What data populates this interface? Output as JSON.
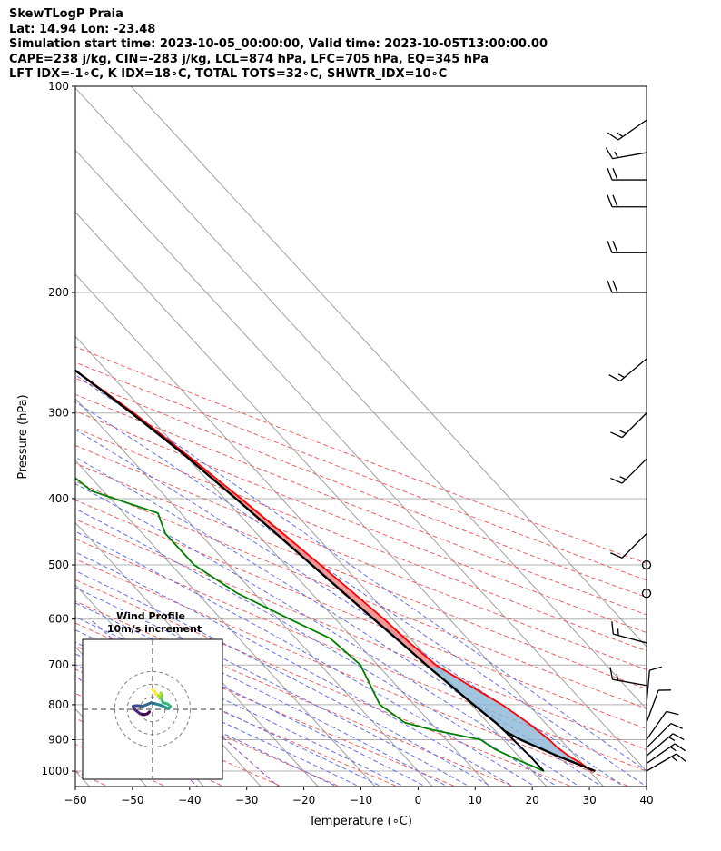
{
  "header": {
    "title": "SkewTLogP Praia",
    "location": "Lat: 14.94   Lon: -23.48",
    "times": "Simulation start time: 2023-10-05_00:00:00, Valid time: 2023-10-05T13:00:00.00",
    "params": "CAPE=238 j/kg, CIN=-283 j/kg, LCL=874 hPa, LFC=705 hPa, EQ=345 hPa",
    "indices": "LFT IDX=-1∘C, K IDX=18∘C, TOTAL TOTS=32∘C, SHWTR_IDX=10∘C"
  },
  "chart_data": {
    "type": "line",
    "subtype": "skew-T log-P diagram",
    "xlabel": "Temperature (∘C)",
    "ylabel": "Pressure (hPa)",
    "xlim": [
      -60,
      40
    ],
    "ylim_hpa": [
      1050,
      100
    ],
    "y_scale": "log",
    "x_ticks": [
      "−60",
      "−50",
      "−40",
      "−30",
      "−20",
      "−10",
      "0",
      "10",
      "20",
      "30",
      "40"
    ],
    "y_ticks": [
      "1000",
      "900",
      "800",
      "700",
      "600",
      "500",
      "400",
      "300",
      "200",
      "100"
    ],
    "grid": true,
    "colors": {
      "temperature": "#ff0000",
      "dewpoint": "#008000",
      "parcel": "#000000",
      "cape": "#8ab6d6",
      "cin": "#f08080",
      "dry_adiabat": "#f06060",
      "moist_adiabat": "#6070ee",
      "mixing_ratio": "#9040c0",
      "isotherm": "#a0a0a0"
    },
    "series": [
      {
        "key": "temperature",
        "points": [
          [
            1000,
            30.5
          ],
          [
            975,
            29.8
          ],
          [
            950,
            28.8
          ],
          [
            925,
            28.2
          ],
          [
            900,
            28.0
          ],
          [
            850,
            27.0
          ],
          [
            800,
            25.4
          ],
          [
            750,
            22.8
          ],
          [
            700,
            20.2
          ],
          [
            650,
            19.2
          ],
          [
            600,
            18.5
          ],
          [
            550,
            17.4
          ],
          [
            500,
            16.1
          ],
          [
            450,
            14.6
          ],
          [
            400,
            12.9
          ],
          [
            350,
            10.7
          ],
          [
            300,
            7.9
          ],
          [
            250,
            3.6
          ],
          [
            200,
            -2.6
          ],
          [
            175,
            -6.9
          ],
          [
            150,
            -11.2
          ],
          [
            137,
            -13.4
          ],
          [
            125,
            -12.3
          ],
          [
            112,
            -11.2
          ],
          [
            100,
            -9.3
          ]
        ]
      },
      {
        "key": "dewpoint",
        "points": [
          [
            1000,
            22.0
          ],
          [
            985,
            21.0
          ],
          [
            960,
            19.0
          ],
          [
            930,
            17.0
          ],
          [
            900,
            16.0
          ],
          [
            870,
            9.0
          ],
          [
            850,
            5.5
          ],
          [
            800,
            4.0
          ],
          [
            700,
            7.0
          ],
          [
            640,
            6.0
          ],
          [
            600,
            2.0
          ],
          [
            550,
            -3.0
          ],
          [
            500,
            -6.0
          ],
          [
            450,
            -6.0
          ],
          [
            420,
            -4.0
          ],
          [
            390,
            -12.0
          ],
          [
            350,
            -14.0
          ],
          [
            320,
            -14.0
          ],
          [
            300,
            -16.0
          ],
          [
            260,
            -22.0
          ],
          [
            230,
            -27.0
          ],
          [
            210,
            -34.0
          ],
          [
            200,
            -35.0
          ],
          [
            175,
            -40.0
          ],
          [
            150,
            -46.0
          ],
          [
            130,
            -51.0
          ],
          [
            120,
            -51.0
          ],
          [
            110,
            -48.0
          ],
          [
            100,
            -47.0
          ]
        ]
      },
      {
        "key": "parcel",
        "points": [
          [
            1000,
            31.0
          ],
          [
            950,
            26.8
          ],
          [
            900,
            23.0
          ],
          [
            874,
            21.6
          ],
          [
            850,
            21.4
          ],
          [
            800,
            20.4
          ],
          [
            750,
            19.5
          ],
          [
            705,
            18.6
          ],
          [
            650,
            17.7
          ],
          [
            600,
            16.7
          ],
          [
            550,
            15.7
          ],
          [
            500,
            14.6
          ],
          [
            450,
            13.4
          ],
          [
            400,
            12.0
          ],
          [
            345,
            10.0
          ],
          [
            300,
            7.5
          ],
          [
            250,
            3.7
          ],
          [
            200,
            -2.0
          ],
          [
            175,
            -6.0
          ],
          [
            150,
            -10.5
          ],
          [
            125,
            -16.0
          ],
          [
            112,
            -19.5
          ],
          [
            100,
            -23.0
          ]
        ]
      },
      {
        "key": "parcel_surface_branch",
        "points": [
          [
            1000,
            22.0
          ],
          [
            950,
            22.0
          ],
          [
            900,
            21.7
          ],
          [
            874,
            21.6
          ]
        ]
      }
    ],
    "wind_barbs": [
      {
        "p": 1000,
        "kind": "barb",
        "speed_kt": 15,
        "dir_deg": 60
      },
      {
        "p": 975,
        "kind": "barb",
        "speed_kt": 15,
        "dir_deg": 55
      },
      {
        "p": 950,
        "kind": "barb",
        "speed_kt": 15,
        "dir_deg": 50
      },
      {
        "p": 925,
        "kind": "barb",
        "speed_kt": 10,
        "dir_deg": 45
      },
      {
        "p": 900,
        "kind": "barb",
        "speed_kt": 10,
        "dir_deg": 35
      },
      {
        "p": 850,
        "kind": "barb",
        "speed_kt": 10,
        "dir_deg": 20
      },
      {
        "p": 800,
        "kind": "barb",
        "speed_kt": 10,
        "dir_deg": 5
      },
      {
        "p": 750,
        "kind": "barb",
        "speed_kt": 15,
        "dir_deg": 280
      },
      {
        "p": 650,
        "kind": "barb",
        "speed_kt": 15,
        "dir_deg": 285
      },
      {
        "p": 550,
        "kind": "calm"
      },
      {
        "p": 500,
        "kind": "calm"
      },
      {
        "p": 450,
        "kind": "barb",
        "speed_kt": 10,
        "dir_deg": 225
      },
      {
        "p": 350,
        "kind": "barb",
        "speed_kt": 15,
        "dir_deg": 225
      },
      {
        "p": 300,
        "kind": "barb",
        "speed_kt": 15,
        "dir_deg": 225
      },
      {
        "p": 250,
        "kind": "barb",
        "speed_kt": 15,
        "dir_deg": 230
      },
      {
        "p": 200,
        "kind": "barb",
        "speed_kt": 20,
        "dir_deg": 270
      },
      {
        "p": 175,
        "kind": "barb",
        "speed_kt": 20,
        "dir_deg": 270
      },
      {
        "p": 150,
        "kind": "barb",
        "speed_kt": 20,
        "dir_deg": 270
      },
      {
        "p": 137,
        "kind": "barb",
        "speed_kt": 20,
        "dir_deg": 270
      },
      {
        "p": 125,
        "kind": "barb",
        "speed_kt": 15,
        "dir_deg": 260
      },
      {
        "p": 112,
        "kind": "barb",
        "speed_kt": 15,
        "dir_deg": 235
      }
    ],
    "hodograph": {
      "title": "Wind Profile",
      "subtitle": "10m/s increment",
      "ring_step_ms": 10,
      "ring_count": 3,
      "range_ms": [
        -10,
        10
      ],
      "points": [
        [
          -1.0,
          -0.8
        ],
        [
          -1.6,
          -1.4
        ],
        [
          -2.6,
          -1.7
        ],
        [
          -4.0,
          -1.4
        ],
        [
          -5.5,
          -0.2
        ],
        [
          -6.2,
          1.0
        ],
        [
          -5.0,
          1.2
        ],
        [
          -3.2,
          1.0
        ],
        [
          -1.5,
          1.6
        ],
        [
          -0.5,
          2.1
        ],
        [
          0.8,
          1.8
        ],
        [
          2.3,
          1.4
        ],
        [
          3.8,
          0.8
        ],
        [
          5.0,
          0.2
        ],
        [
          5.7,
          0.9
        ],
        [
          4.8,
          1.7
        ],
        [
          3.3,
          2.1
        ],
        [
          2.8,
          3.4
        ],
        [
          3.0,
          4.5
        ],
        [
          2.7,
          5.2
        ],
        [
          2.2,
          4.1
        ],
        [
          1.2,
          4.8
        ],
        [
          0.5,
          5.9
        ],
        [
          0.0,
          6.2
        ]
      ]
    }
  }
}
